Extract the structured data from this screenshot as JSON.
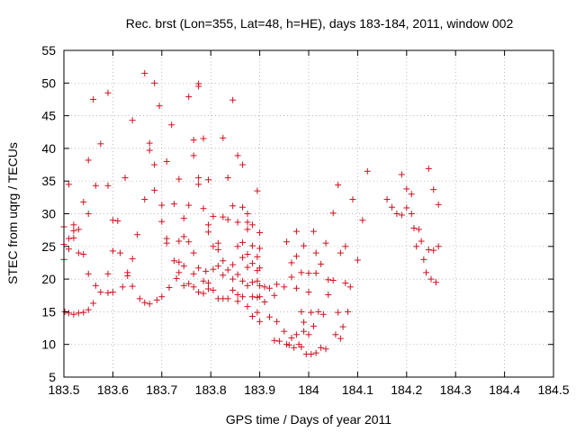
{
  "chart_data": {
    "type": "scatter",
    "title": "Rec. brst (Lon=355, Lat=48, h=HE), days 183-184, 2011, window 002",
    "xlabel": "GPS time / Days of year 2011",
    "ylabel": "STEC from uqrg / TECUs",
    "xlim": [
      183.5,
      184.5
    ],
    "ylim": [
      5,
      55
    ],
    "xticks": [
      "183.5",
      "183.6",
      "183.7",
      "183.8",
      "183.9",
      "184",
      "184.1",
      "184.2",
      "184.3",
      "184.4",
      "184.5"
    ],
    "yticks": [
      "5",
      "10",
      "15",
      "20",
      "25",
      "30",
      "35",
      "40",
      "45",
      "50",
      "55"
    ],
    "grid": true,
    "marker": "plus",
    "color": "#d01020",
    "points": [
      [
        183.5,
        28.0
      ],
      [
        183.5,
        25.3
      ],
      [
        183.5,
        23.0
      ],
      [
        183.502,
        15.0
      ],
      [
        183.51,
        34.5
      ],
      [
        183.51,
        26.2
      ],
      [
        183.51,
        24.6
      ],
      [
        183.51,
        14.8
      ],
      [
        183.52,
        28.3
      ],
      [
        183.52,
        27.4
      ],
      [
        183.52,
        26.3
      ],
      [
        183.52,
        14.6
      ],
      [
        183.53,
        14.8
      ],
      [
        183.53,
        27.6
      ],
      [
        183.53,
        24.0
      ],
      [
        183.54,
        31.8
      ],
      [
        183.54,
        23.8
      ],
      [
        183.54,
        14.9
      ],
      [
        183.55,
        30.0
      ],
      [
        183.55,
        38.2
      ],
      [
        183.55,
        20.8
      ],
      [
        183.55,
        15.3
      ],
      [
        183.56,
        47.5
      ],
      [
        183.56,
        16.3
      ],
      [
        183.565,
        34.3
      ],
      [
        183.565,
        19.0
      ],
      [
        183.575,
        40.7
      ],
      [
        183.575,
        18.0
      ],
      [
        183.59,
        48.5
      ],
      [
        183.59,
        34.3
      ],
      [
        183.59,
        20.8
      ],
      [
        183.59,
        17.9
      ],
      [
        183.6,
        29.0
      ],
      [
        183.6,
        24.3
      ],
      [
        183.6,
        18.0
      ],
      [
        183.61,
        28.9
      ],
      [
        183.615,
        24.0
      ],
      [
        183.62,
        18.8
      ],
      [
        183.625,
        35.5
      ],
      [
        183.63,
        21.0
      ],
      [
        183.63,
        20.5
      ],
      [
        183.64,
        44.3
      ],
      [
        183.64,
        23.1
      ],
      [
        183.64,
        18.9
      ],
      [
        183.65,
        26.8
      ],
      [
        183.655,
        17.0
      ],
      [
        183.665,
        51.5
      ],
      [
        183.665,
        32.2
      ],
      [
        183.665,
        16.4
      ],
      [
        183.675,
        40.8
      ],
      [
        183.675,
        39.7
      ],
      [
        183.675,
        16.2
      ],
      [
        183.685,
        50.0
      ],
      [
        183.685,
        37.5
      ],
      [
        183.685,
        33.6
      ],
      [
        183.69,
        16.8
      ],
      [
        183.695,
        46.5
      ],
      [
        183.7,
        31.3
      ],
      [
        183.7,
        28.8
      ],
      [
        183.7,
        17.3
      ],
      [
        183.71,
        38.0
      ],
      [
        183.71,
        26.2
      ],
      [
        183.71,
        25.5
      ],
      [
        183.715,
        18.7
      ],
      [
        183.72,
        43.6
      ],
      [
        183.725,
        31.5
      ],
      [
        183.725,
        22.8
      ],
      [
        183.73,
        20.1
      ],
      [
        183.735,
        35.3
      ],
      [
        183.735,
        25.8
      ],
      [
        183.735,
        22.6
      ],
      [
        183.735,
        21.0
      ],
      [
        183.745,
        29.3
      ],
      [
        183.745,
        26.5
      ],
      [
        183.745,
        22.0
      ],
      [
        183.745,
        19.0
      ],
      [
        183.755,
        47.9
      ],
      [
        183.755,
        31.3
      ],
      [
        183.755,
        25.7
      ],
      [
        183.755,
        19.3
      ],
      [
        183.765,
        41.3
      ],
      [
        183.765,
        38.9
      ],
      [
        183.765,
        24.0
      ],
      [
        183.765,
        20.8
      ],
      [
        183.765,
        18.8
      ],
      [
        183.775,
        49.9
      ],
      [
        183.775,
        49.5
      ],
      [
        183.775,
        35.5
      ],
      [
        183.775,
        34.5
      ],
      [
        183.775,
        21.7
      ],
      [
        183.775,
        18.0
      ],
      [
        183.785,
        41.5
      ],
      [
        183.785,
        30.8
      ],
      [
        183.785,
        19.7
      ],
      [
        183.785,
        17.8
      ],
      [
        183.79,
        21.2
      ],
      [
        183.795,
        35.2
      ],
      [
        183.795,
        28.3
      ],
      [
        183.795,
        27.2
      ],
      [
        183.795,
        19.4
      ],
      [
        183.795,
        18.5
      ],
      [
        183.805,
        29.6
      ],
      [
        183.805,
        25.0
      ],
      [
        183.805,
        21.5
      ],
      [
        183.805,
        18.3
      ],
      [
        183.815,
        25.5
      ],
      [
        183.815,
        24.5
      ],
      [
        183.815,
        22.0
      ],
      [
        183.815,
        17.0
      ],
      [
        183.825,
        41.6
      ],
      [
        183.825,
        29.5
      ],
      [
        183.825,
        22.8
      ],
      [
        183.825,
        20.6
      ],
      [
        183.825,
        17.0
      ],
      [
        183.835,
        35.5
      ],
      [
        183.835,
        29.1
      ],
      [
        183.835,
        21.4
      ],
      [
        183.835,
        17.0
      ],
      [
        183.845,
        47.4
      ],
      [
        183.845,
        31.2
      ],
      [
        183.845,
        22.2
      ],
      [
        183.845,
        20.0
      ],
      [
        183.845,
        18.3
      ],
      [
        183.855,
        38.9
      ],
      [
        183.855,
        28.7
      ],
      [
        183.855,
        25.0
      ],
      [
        183.855,
        20.7
      ],
      [
        183.855,
        17.6
      ],
      [
        183.855,
        16.6
      ],
      [
        183.865,
        37.5
      ],
      [
        183.865,
        31.0
      ],
      [
        183.865,
        25.6
      ],
      [
        183.865,
        23.3
      ],
      [
        183.865,
        19.7
      ],
      [
        183.865,
        17.3
      ],
      [
        183.875,
        30.0
      ],
      [
        183.875,
        28.7
      ],
      [
        183.875,
        27.6
      ],
      [
        183.875,
        23.8
      ],
      [
        183.875,
        21.8
      ],
      [
        183.875,
        19.0
      ],
      [
        183.875,
        15.8
      ],
      [
        183.885,
        28.3
      ],
      [
        183.885,
        25.1
      ],
      [
        183.885,
        22.4
      ],
      [
        183.885,
        19.5
      ],
      [
        183.885,
        17.3
      ],
      [
        183.885,
        14.3
      ],
      [
        183.895,
        33.5
      ],
      [
        183.895,
        23.4
      ],
      [
        183.895,
        21.3
      ],
      [
        183.895,
        19.7
      ],
      [
        183.895,
        17.2
      ],
      [
        183.895,
        14.9
      ],
      [
        183.9,
        27.1
      ],
      [
        183.9,
        24.7
      ],
      [
        183.9,
        21.7
      ],
      [
        183.9,
        19.0
      ],
      [
        183.9,
        17.3
      ],
      [
        183.9,
        13.5
      ],
      [
        183.91,
        18.8
      ],
      [
        183.91,
        16.5
      ],
      [
        183.92,
        18.6
      ],
      [
        183.92,
        14.2
      ],
      [
        183.93,
        17.5
      ],
      [
        183.93,
        10.6
      ],
      [
        183.935,
        19.2
      ],
      [
        183.935,
        13.5
      ],
      [
        183.94,
        10.5
      ],
      [
        183.95,
        18.8
      ],
      [
        183.95,
        12.0
      ],
      [
        183.955,
        10.0
      ],
      [
        183.955,
        25.7
      ],
      [
        183.96,
        9.9
      ],
      [
        183.965,
        22.5
      ],
      [
        183.965,
        20.3
      ],
      [
        183.965,
        11.0
      ],
      [
        183.97,
        9.5
      ],
      [
        183.975,
        27.3
      ],
      [
        183.975,
        23.5
      ],
      [
        183.975,
        18.6
      ],
      [
        183.975,
        11.5
      ],
      [
        183.98,
        10.0
      ],
      [
        183.985,
        21.0
      ],
      [
        183.985,
        15.0
      ],
      [
        183.985,
        9.6
      ],
      [
        183.99,
        25.1
      ],
      [
        183.99,
        13.4
      ],
      [
        183.99,
        12.0
      ],
      [
        183.995,
        8.5
      ],
      [
        184.0,
        20.9
      ],
      [
        184.0,
        18.0
      ],
      [
        184.0,
        11.5
      ],
      [
        184.005,
        14.9
      ],
      [
        184.005,
        8.5
      ],
      [
        184.01,
        27.3
      ],
      [
        184.01,
        12.8
      ],
      [
        184.015,
        24.0
      ],
      [
        184.015,
        20.9
      ],
      [
        184.015,
        8.7
      ],
      [
        184.02,
        15.0
      ],
      [
        184.025,
        22.3
      ],
      [
        184.025,
        9.5
      ],
      [
        184.03,
        14.6
      ],
      [
        184.035,
        25.5
      ],
      [
        184.035,
        9.3
      ],
      [
        184.04,
        19.9
      ],
      [
        184.04,
        17.6
      ],
      [
        184.05,
        30.1
      ],
      [
        184.05,
        19.8
      ],
      [
        184.055,
        11.5
      ],
      [
        184.06,
        34.4
      ],
      [
        184.06,
        14.9
      ],
      [
        184.065,
        24.0
      ],
      [
        184.065,
        10.9
      ],
      [
        184.07,
        12.7
      ],
      [
        184.075,
        25.0
      ],
      [
        184.075,
        19.4
      ],
      [
        184.08,
        15.0
      ],
      [
        184.085,
        18.8
      ],
      [
        184.09,
        32.2
      ],
      [
        184.1,
        22.9
      ],
      [
        184.11,
        29.0
      ],
      [
        184.12,
        36.5
      ],
      [
        184.16,
        32.2
      ],
      [
        184.17,
        31.0
      ],
      [
        184.18,
        30.0
      ],
      [
        184.19,
        36.0
      ],
      [
        184.19,
        29.8
      ],
      [
        184.2,
        33.8
      ],
      [
        184.2,
        30.9
      ],
      [
        184.21,
        33.0
      ],
      [
        184.21,
        30.0
      ],
      [
        184.215,
        27.8
      ],
      [
        184.22,
        25.0
      ],
      [
        184.225,
        27.6
      ],
      [
        184.23,
        25.8
      ],
      [
        184.235,
        23.0
      ],
      [
        184.24,
        21.0
      ],
      [
        184.245,
        36.9
      ],
      [
        184.245,
        24.5
      ],
      [
        184.25,
        20.0
      ],
      [
        184.255,
        33.7
      ],
      [
        184.255,
        24.4
      ],
      [
        184.26,
        19.5
      ],
      [
        184.265,
        31.4
      ],
      [
        184.265,
        25.0
      ]
    ]
  }
}
